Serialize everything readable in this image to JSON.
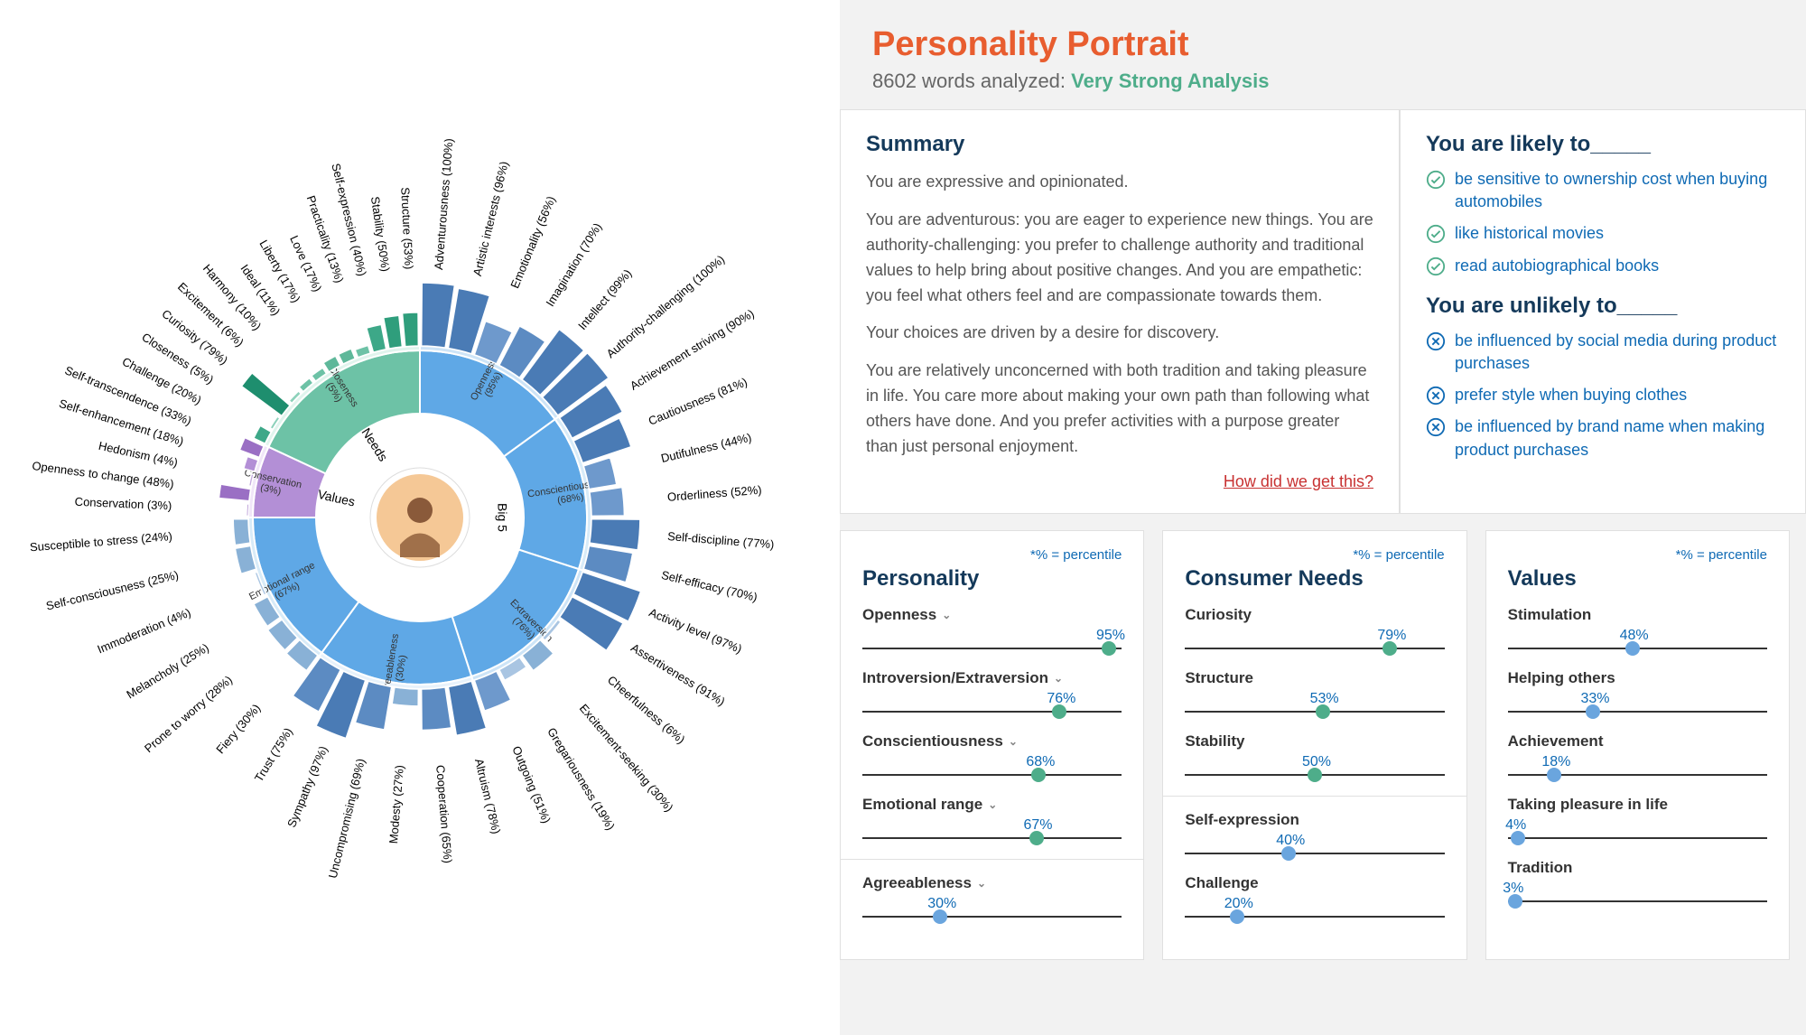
{
  "colors": {
    "title": "#e85d2f",
    "analysis_strength": "#4ead8a",
    "heading": "#14395a",
    "link_blue": "#0f6ab4",
    "link_red": "#c83232",
    "teal_dot": "#4ead8a",
    "blue_dot": "#6aa5de",
    "check_icon": "#4ead8a",
    "cross_icon": "#0f6ab4",
    "track": "#333333"
  },
  "header": {
    "title": "Personality Portrait",
    "word_count": "8602 words analyzed:",
    "strength": "Very Strong Analysis"
  },
  "summary": {
    "heading": "Summary",
    "paragraphs": [
      "You are expressive and opinionated.",
      "You are adventurous: you are eager to experience new things. You are authority-challenging: you prefer to challenge authority and traditional values to help bring about positive changes. And you are empathetic: you feel what others feel and are compassionate towards them.",
      "Your choices are driven by a desire for discovery.",
      "You are relatively unconcerned with both tradition and taking pleasure in life. You care more about making your own path than following what others have done. And you prefer activities with a purpose greater than just personal enjoyment."
    ],
    "how_link": "How did we get this?"
  },
  "likely": {
    "heading_likely": "You are likely to_____",
    "heading_unlikely": "You are unlikely to_____",
    "likely_items": [
      "be sensitive to ownership cost when buying automobiles",
      "like historical movies",
      "read autobiographical books"
    ],
    "unlikely_items": [
      "be influenced by social media during product purchases",
      "prefer style when buying clothes",
      "be influenced by brand name when making product purchases"
    ]
  },
  "percentile_note": "*% = percentile",
  "panels": {
    "personality": {
      "heading": "Personality",
      "items": [
        {
          "label": "Openness",
          "value": 95,
          "color": "#4ead8a",
          "expandable": true
        },
        {
          "label": "Introversion/Extraversion",
          "value": 76,
          "color": "#4ead8a",
          "expandable": true
        },
        {
          "label": "Conscientiousness",
          "value": 68,
          "color": "#4ead8a",
          "expandable": true
        },
        {
          "label": "Emotional range",
          "value": 67,
          "color": "#4ead8a",
          "expandable": true
        },
        {
          "label": "Agreeableness",
          "value": 30,
          "color": "#6aa5de",
          "expandable": true,
          "divider_before": true
        }
      ]
    },
    "needs": {
      "heading": "Consumer Needs",
      "items": [
        {
          "label": "Curiosity",
          "value": 79,
          "color": "#4ead8a"
        },
        {
          "label": "Structure",
          "value": 53,
          "color": "#4ead8a"
        },
        {
          "label": "Stability",
          "value": 50,
          "color": "#4ead8a"
        },
        {
          "label": "Self-expression",
          "value": 40,
          "color": "#6aa5de",
          "divider_before": true
        },
        {
          "label": "Challenge",
          "value": 20,
          "color": "#6aa5de"
        }
      ]
    },
    "values": {
      "heading": "Values",
      "items": [
        {
          "label": "Stimulation",
          "value": 48,
          "color": "#6aa5de"
        },
        {
          "label": "Helping others",
          "value": 33,
          "color": "#6aa5de"
        },
        {
          "label": "Achievement",
          "value": 18,
          "color": "#6aa5de"
        },
        {
          "label": "Taking pleasure in life",
          "value": 4,
          "color": "#6aa5de"
        },
        {
          "label": "Tradition",
          "value": 3,
          "color": "#6aa5de"
        }
      ]
    }
  },
  "sunburst": {
    "center_label": "Big 5",
    "r_inner": 115,
    "r_mid": 185,
    "r_outer_base": 190,
    "r_outer_max": 260,
    "r_label": 275,
    "groups": [
      {
        "name": "big5",
        "label": "Big 5",
        "start_deg": -90,
        "end_deg": 180,
        "segments": [
          {
            "label": "Openness",
            "value": 95,
            "color_inner": "#5fa8e6",
            "color_mid": "#cde4f7",
            "facets": [
              {
                "label": "Adventurousness",
                "value": 100,
                "color": "#4a7bb5"
              },
              {
                "label": "Artistic interests",
                "value": 96,
                "color": "#4a7bb5"
              },
              {
                "label": "Emotionality",
                "value": 56,
                "color": "#6e99cc"
              },
              {
                "label": "Imagination",
                "value": 70,
                "color": "#5c8bc2"
              },
              {
                "label": "Intellect",
                "value": 99,
                "color": "#4a7bb5"
              },
              {
                "label": "Authority-challenging",
                "value": 100,
                "color": "#4a7bb5"
              }
            ]
          },
          {
            "label": "Conscientiousness",
            "value": 68,
            "color_inner": "#5fa8e6",
            "color_mid": "#d8ebf8",
            "facets": [
              {
                "label": "Achievement striving",
                "value": 90,
                "color": "#4a7bb5"
              },
              {
                "label": "Cautiousness",
                "value": 81,
                "color": "#4a7bb5"
              },
              {
                "label": "Dutifulness",
                "value": 44,
                "color": "#6e99cc"
              },
              {
                "label": "Orderliness",
                "value": 52,
                "color": "#6e99cc"
              },
              {
                "label": "Self-discipline",
                "value": 77,
                "color": "#4a7bb5"
              },
              {
                "label": "Self-efficacy",
                "value": 70,
                "color": "#5c8bc2"
              }
            ]
          },
          {
            "label": "Extraversion",
            "value": 76,
            "color_inner": "#5fa8e6",
            "color_mid": "#cde4f7",
            "facets": [
              {
                "label": "Activity level",
                "value": 97,
                "color": "#4a7bb5"
              },
              {
                "label": "Assertiveness",
                "value": 91,
                "color": "#4a7bb5"
              },
              {
                "label": "Cheerfulness",
                "value": 6,
                "color": "#a9c5e2"
              },
              {
                "label": "Excitement-seeking",
                "value": 30,
                "color": "#89b1d6"
              },
              {
                "label": "Gregariousness",
                "value": 19,
                "color": "#a9c5e2"
              },
              {
                "label": "Outgoing",
                "value": 51,
                "color": "#6e99cc"
              }
            ]
          },
          {
            "label": "Agreeableness",
            "value": 30,
            "color_inner": "#5fa8e6",
            "color_mid": "#e8f2fb",
            "facets": [
              {
                "label": "Altruism",
                "value": 78,
                "color": "#4a7bb5"
              },
              {
                "label": "Cooperation",
                "value": 65,
                "color": "#5c8bc2"
              },
              {
                "label": "Modesty",
                "value": 27,
                "color": "#89b1d6"
              },
              {
                "label": "Uncompromising",
                "value": 69,
                "color": "#5c8bc2"
              },
              {
                "label": "Sympathy",
                "value": 97,
                "color": "#4a7bb5"
              },
              {
                "label": "Trust",
                "value": 75,
                "color": "#5c8bc2"
              }
            ]
          },
          {
            "label": "Emotional range",
            "value": 67,
            "color_inner": "#5fa8e6",
            "color_mid": "#d8ebf8",
            "facets": [
              {
                "label": "Fiery",
                "value": 30,
                "color": "#89b1d6"
              },
              {
                "label": "Prone to worry",
                "value": 28,
                "color": "#89b1d6"
              },
              {
                "label": "Melancholy",
                "value": 25,
                "color": "#89b1d6"
              },
              {
                "label": "Immoderation",
                "value": 4,
                "color": "#a9c5e2"
              },
              {
                "label": "Self-consciousness",
                "value": 25,
                "color": "#89b1d6"
              },
              {
                "label": "Susceptible to stress",
                "value": 24,
                "color": "#89b1d6"
              }
            ]
          }
        ]
      },
      {
        "name": "values",
        "label": "Values",
        "start_deg": 180,
        "end_deg": 205,
        "segments": [
          {
            "label": "Conservation",
            "value": 3,
            "color_inner": "#b38fd6",
            "color_mid": "#f0e6f8",
            "facets": [
              {
                "label": "Conservation",
                "value": 3,
                "color": "#9a6fc4"
              },
              {
                "label": "Openness to change",
                "value": 48,
                "color": "#9a6fc4"
              },
              {
                "label": "Hedonism",
                "value": 4,
                "color": "#c5abe0"
              },
              {
                "label": "Self-enhancement",
                "value": 18,
                "color": "#b38fd6"
              },
              {
                "label": "Self-transcendence",
                "value": 33,
                "color": "#9a6fc4"
              }
            ]
          }
        ]
      },
      {
        "name": "needs",
        "label": "Needs",
        "start_deg": 205,
        "end_deg": 270,
        "segments": [
          {
            "label": "Closeness",
            "value": 5,
            "color_inner": "#6dc2a6",
            "color_mid": "#e0f4ed",
            "facets": [
              {
                "label": "Challenge",
                "value": 20,
                "color": "#3da888"
              },
              {
                "label": "Closeness",
                "value": 5,
                "color": "#8cd1ba"
              },
              {
                "label": "Curiosity",
                "value": 79,
                "color": "#1e8e6e"
              },
              {
                "label": "Excitement",
                "value": 6,
                "color": "#8cd1ba"
              },
              {
                "label": "Harmony",
                "value": 10,
                "color": "#6dc2a6"
              },
              {
                "label": "Ideal",
                "value": 11,
                "color": "#6dc2a6"
              },
              {
                "label": "Liberty",
                "value": 17,
                "color": "#5eb89a"
              },
              {
                "label": "Love",
                "value": 17,
                "color": "#5eb89a"
              },
              {
                "label": "Practicality",
                "value": 13,
                "color": "#6dc2a6"
              },
              {
                "label": "Self-expression",
                "value": 40,
                "color": "#3da888"
              },
              {
                "label": "Stability",
                "value": 50,
                "color": "#2f9e7c"
              },
              {
                "label": "Structure",
                "value": 53,
                "color": "#2f9e7c"
              }
            ]
          }
        ]
      }
    ]
  }
}
